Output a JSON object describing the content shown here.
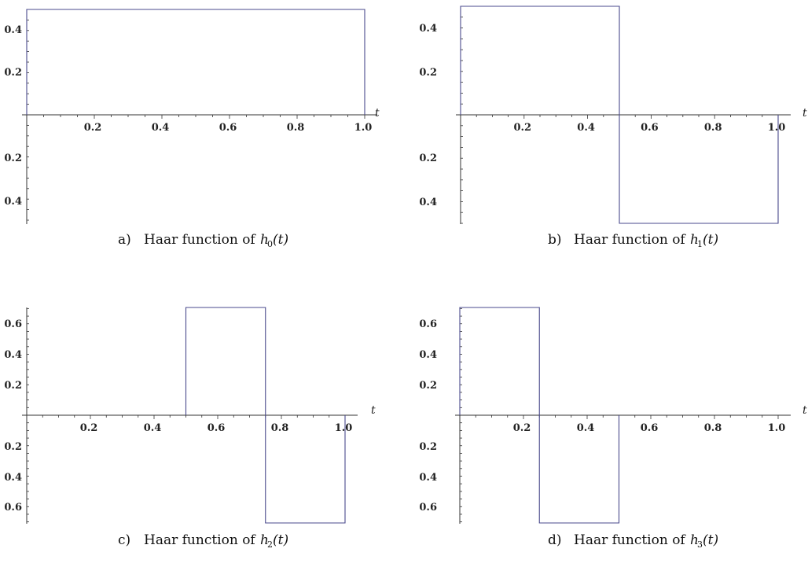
{
  "chart_data": [
    {
      "type": "line",
      "step": true,
      "xlabel": "t",
      "ylim": [
        -0.5,
        0.5
      ],
      "xlim": [
        0,
        1
      ],
      "x_ticks": [
        "0.2",
        "0.4",
        "0.6",
        "0.8",
        "1.0"
      ],
      "y_ticks": [
        "0.4",
        "0.2",
        "0.2",
        "0.4"
      ],
      "segments": [
        {
          "x": [
            0,
            1
          ],
          "y": 0.5
        }
      ],
      "caption": {
        "letter": "a)",
        "text": "Haar function of",
        "fn": "h",
        "sub": "0",
        "arg": "(t)"
      }
    },
    {
      "type": "line",
      "step": true,
      "xlabel": "t",
      "ylim": [
        -0.5,
        0.5
      ],
      "xlim": [
        0,
        1
      ],
      "x_ticks": [
        "0.2",
        "0.4",
        "0.6",
        "0.8",
        "1.0"
      ],
      "y_ticks": [
        "0.4",
        "0.2",
        "0.2",
        "0.4"
      ],
      "segments": [
        {
          "x": [
            0,
            0.5
          ],
          "y": 0.5
        },
        {
          "x": [
            0.5,
            1
          ],
          "y": -0.5
        }
      ],
      "caption": {
        "letter": "b)",
        "text": "Haar function of",
        "fn": "h",
        "sub": "1",
        "arg": "(t)"
      }
    },
    {
      "type": "line",
      "step": true,
      "xlabel": "t",
      "ylim": [
        -0.707,
        0.707
      ],
      "xlim": [
        0,
        1
      ],
      "x_ticks": [
        "0.2",
        "0.4",
        "0.6",
        "0.8",
        "1.0"
      ],
      "y_ticks": [
        "0.6",
        "0.4",
        "0.2",
        "0.2",
        "0.4",
        "0.6"
      ],
      "segments": [
        {
          "x": [
            0.5,
            0.75
          ],
          "y": 0.707
        },
        {
          "x": [
            0.75,
            1
          ],
          "y": -0.707
        }
      ],
      "caption": {
        "letter": "c)",
        "text": "Haar function of",
        "fn": "h",
        "sub": "2",
        "arg": "(t)"
      }
    },
    {
      "type": "line",
      "step": true,
      "xlabel": "t",
      "ylim": [
        -0.707,
        0.707
      ],
      "xlim": [
        0,
        1
      ],
      "x_ticks": [
        "0.2",
        "0.4",
        "0.6",
        "0.8",
        "1.0"
      ],
      "y_ticks": [
        "0.6",
        "0.4",
        "0.2",
        "0.2",
        "0.4",
        "0.6"
      ],
      "segments": [
        {
          "x": [
            0,
            0.25
          ],
          "y": 0.707
        },
        {
          "x": [
            0.25,
            0.5
          ],
          "y": -0.707
        }
      ],
      "caption": {
        "letter": "d)",
        "text": "Haar function of",
        "fn": "h",
        "sub": "3",
        "arg": "(t)"
      }
    }
  ],
  "colors": {
    "line": "#4a4a8c",
    "axis": "#333333"
  }
}
